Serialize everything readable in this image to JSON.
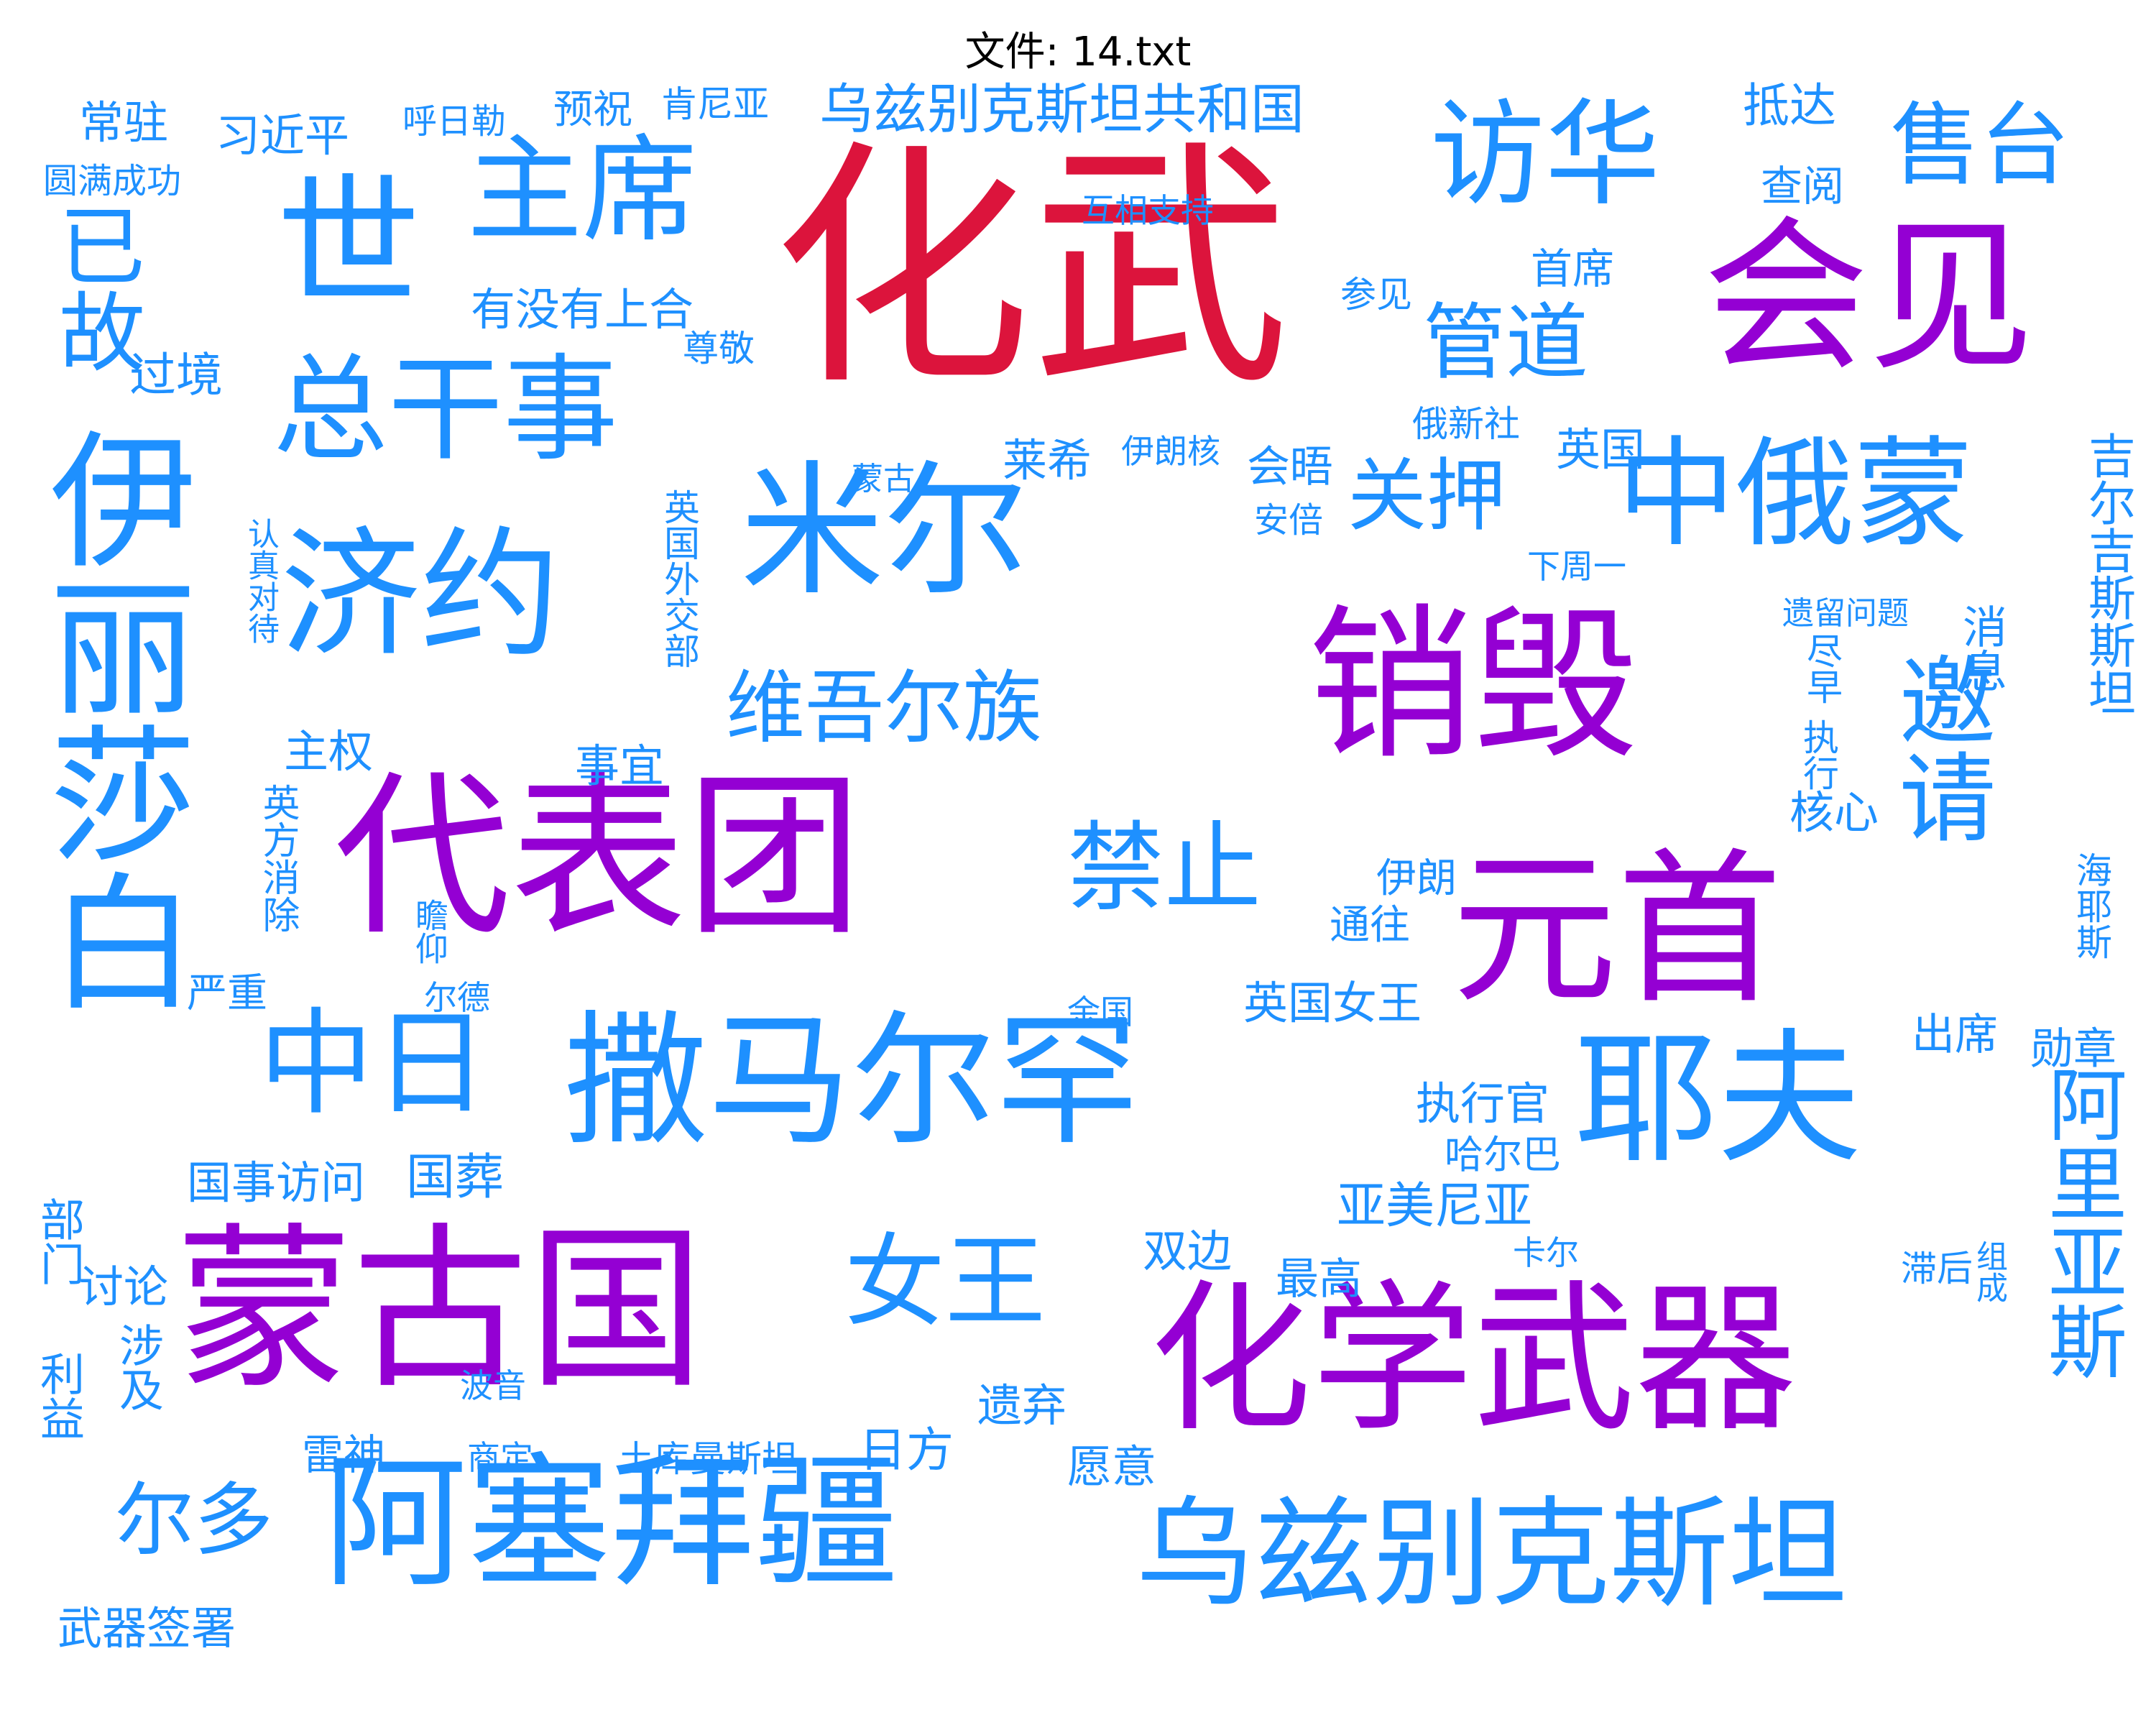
{
  "title": "文件: 14.txt",
  "colors": {
    "red": "#dc143c",
    "purple": "#9400d3",
    "blue": "#1e90ff"
  },
  "words": [
    {
      "text": "化武",
      "color": "red"
    },
    {
      "text": "会见",
      "color": "purple"
    },
    {
      "text": "销毁",
      "color": "purple"
    },
    {
      "text": "代表团",
      "color": "purple"
    },
    {
      "text": "元首",
      "color": "purple"
    },
    {
      "text": "蒙古国",
      "color": "purple"
    },
    {
      "text": "化学武器",
      "color": "purple"
    },
    {
      "text": "主席",
      "color": "blue"
    },
    {
      "text": "访华",
      "color": "blue"
    },
    {
      "text": "售台",
      "color": "blue"
    },
    {
      "text": "世",
      "color": "blue"
    },
    {
      "text": "已故",
      "color": "blue"
    },
    {
      "text": "总干事",
      "color": "blue"
    },
    {
      "text": "伊丽莎白",
      "color": "blue"
    },
    {
      "text": "济约",
      "color": "blue"
    },
    {
      "text": "米尔",
      "color": "blue"
    },
    {
      "text": "中俄蒙",
      "color": "blue"
    },
    {
      "text": "邀请",
      "color": "blue"
    },
    {
      "text": "维吾尔族",
      "color": "blue"
    },
    {
      "text": "禁止",
      "color": "blue"
    },
    {
      "text": "中日",
      "color": "blue"
    },
    {
      "text": "撒马尔罕",
      "color": "blue"
    },
    {
      "text": "耶夫",
      "color": "blue"
    },
    {
      "text": "阿里亚斯",
      "color": "blue"
    },
    {
      "text": "女王",
      "color": "blue"
    },
    {
      "text": "阿塞拜疆",
      "color": "blue"
    },
    {
      "text": "乌兹别克斯坦",
      "color": "blue"
    },
    {
      "text": "乌兹别克斯坦共和国",
      "color": "blue"
    },
    {
      "text": "管道",
      "color": "blue"
    },
    {
      "text": "关押",
      "color": "blue"
    },
    {
      "text": "尔多",
      "color": "blue"
    },
    {
      "text": "常驻",
      "color": "blue"
    },
    {
      "text": "习近平",
      "color": "blue"
    },
    {
      "text": "呼日勒",
      "color": "blue"
    },
    {
      "text": "预祝",
      "color": "blue"
    },
    {
      "text": "肯尼亚",
      "color": "blue"
    },
    {
      "text": "抵达",
      "color": "blue"
    },
    {
      "text": "圆满成功",
      "color": "blue"
    },
    {
      "text": "互相支持",
      "color": "blue"
    },
    {
      "text": "查阅",
      "color": "blue"
    },
    {
      "text": "首席",
      "color": "blue"
    },
    {
      "text": "有没有上合",
      "color": "blue"
    },
    {
      "text": "参见",
      "color": "blue"
    },
    {
      "text": "尊敬",
      "color": "blue"
    },
    {
      "text": "过境",
      "color": "blue"
    },
    {
      "text": "俄新社",
      "color": "blue"
    },
    {
      "text": "英国",
      "color": "blue"
    },
    {
      "text": "莱希",
      "color": "blue"
    },
    {
      "text": "伊朗核",
      "color": "blue"
    },
    {
      "text": "会晤",
      "color": "blue"
    },
    {
      "text": "蒙古",
      "color": "blue"
    },
    {
      "text": "安倍",
      "color": "blue"
    },
    {
      "text": "下周一",
      "color": "blue"
    },
    {
      "text": "吉尔吉斯斯坦",
      "color": "blue"
    },
    {
      "text": "认真对待",
      "color": "blue"
    },
    {
      "text": "英国外交部",
      "color": "blue"
    },
    {
      "text": "遗留问题",
      "color": "blue"
    },
    {
      "text": "尽早",
      "color": "blue"
    },
    {
      "text": "消息",
      "color": "blue"
    },
    {
      "text": "执行",
      "color": "blue"
    },
    {
      "text": "主权",
      "color": "blue"
    },
    {
      "text": "事宜",
      "color": "blue"
    },
    {
      "text": "英方消除",
      "color": "blue"
    },
    {
      "text": "核心",
      "color": "blue"
    },
    {
      "text": "伊朗",
      "color": "blue"
    },
    {
      "text": "海耶斯",
      "color": "blue"
    },
    {
      "text": "瞻仰",
      "color": "blue"
    },
    {
      "text": "通往",
      "color": "blue"
    },
    {
      "text": "严重",
      "color": "blue"
    },
    {
      "text": "尔德",
      "color": "blue"
    },
    {
      "text": "英国女王",
      "color": "blue"
    },
    {
      "text": "余国",
      "color": "blue"
    },
    {
      "text": "出席",
      "color": "blue"
    },
    {
      "text": "勋章",
      "color": "blue"
    },
    {
      "text": "执行官",
      "color": "blue"
    },
    {
      "text": "国事访问",
      "color": "blue"
    },
    {
      "text": "国葬",
      "color": "blue"
    },
    {
      "text": "哈尔巴",
      "color": "blue"
    },
    {
      "text": "部门",
      "color": "blue"
    },
    {
      "text": "亚美尼亚",
      "color": "blue"
    },
    {
      "text": "双边",
      "color": "blue"
    },
    {
      "text": "卡尔",
      "color": "blue"
    },
    {
      "text": "最高",
      "color": "blue"
    },
    {
      "text": "滞后",
      "color": "blue"
    },
    {
      "text": "组成",
      "color": "blue"
    },
    {
      "text": "讨论",
      "color": "blue"
    },
    {
      "text": "利益",
      "color": "blue"
    },
    {
      "text": "涉及",
      "color": "blue"
    },
    {
      "text": "波音",
      "color": "blue"
    },
    {
      "text": "遗弃",
      "color": "blue"
    },
    {
      "text": "日方",
      "color": "blue"
    },
    {
      "text": "雷神",
      "color": "blue"
    },
    {
      "text": "商定",
      "color": "blue"
    },
    {
      "text": "土库曼斯坦",
      "color": "blue"
    },
    {
      "text": "愿意",
      "color": "blue"
    },
    {
      "text": "武器签署",
      "color": "blue"
    }
  ]
}
